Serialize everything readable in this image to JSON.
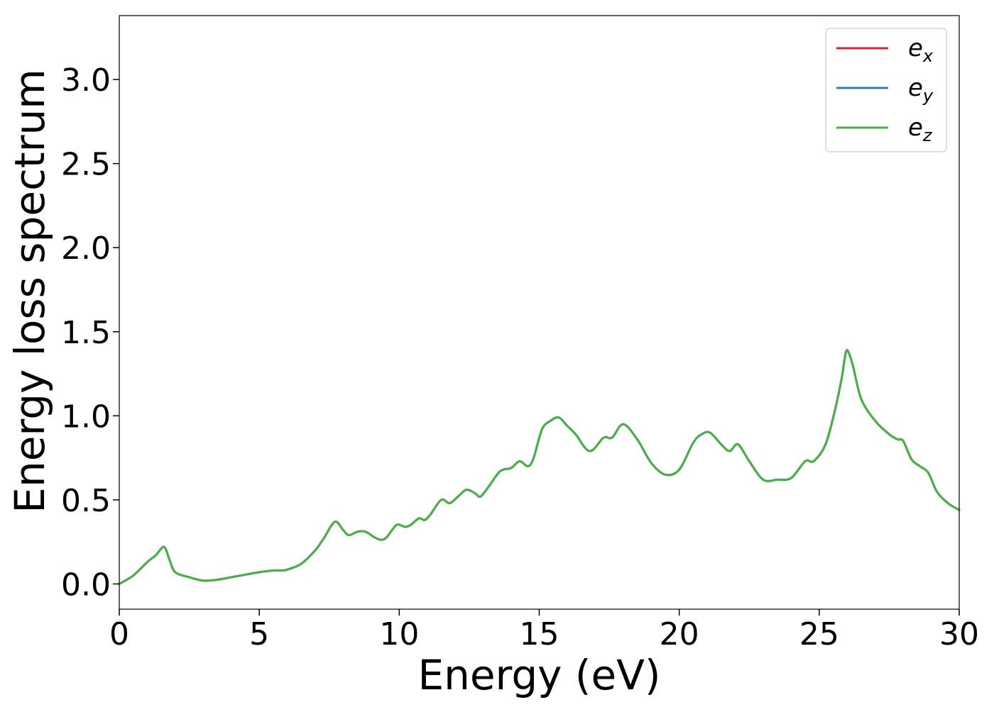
{
  "chart_data": {
    "type": "line",
    "title": "",
    "xlabel": "Energy (eV)",
    "ylabel": "Energy loss spectrum",
    "xlim": [
      0,
      30
    ],
    "ylim": [
      -0.15,
      3.38
    ],
    "xticks": [
      0,
      5,
      10,
      15,
      20,
      25,
      30
    ],
    "xtick_labels": [
      "0",
      "5",
      "10",
      "15",
      "20",
      "25",
      "30"
    ],
    "yticks": [
      0.0,
      0.5,
      1.0,
      1.5,
      2.0,
      2.5,
      3.0
    ],
    "ytick_labels": [
      "0.0",
      "0.5",
      "1.0",
      "1.5",
      "2.0",
      "2.5",
      "3.0"
    ],
    "grid": false,
    "legend_position": "top-right",
    "x": [
      0,
      0.5,
      1.0,
      1.3,
      1.6,
      1.8,
      2.0,
      2.5,
      3.0,
      3.5,
      4.0,
      4.5,
      5.0,
      5.5,
      5.8,
      6.0,
      6.5,
      7.0,
      7.3,
      7.7,
      8.0,
      8.2,
      8.5,
      8.8,
      9.2,
      9.5,
      9.9,
      10.2,
      10.4,
      10.7,
      10.9,
      11.1,
      11.5,
      11.8,
      12.1,
      12.4,
      12.7,
      12.9,
      13.2,
      13.6,
      14.0,
      14.3,
      14.6,
      14.8,
      15.1,
      15.4,
      15.7,
      16.0,
      16.3,
      16.8,
      17.3,
      17.6,
      18.0,
      18.5,
      19.0,
      19.5,
      20.0,
      20.5,
      20.8,
      21.1,
      21.5,
      21.8,
      22.1,
      22.5,
      23.0,
      23.5,
      24.0,
      24.5,
      24.8,
      25.2,
      25.5,
      25.8,
      25.9,
      26.0,
      26.2,
      26.5,
      27.0,
      27.5,
      27.8,
      28.0,
      28.3,
      28.6,
      28.9,
      29.2,
      29.6,
      30.0
    ],
    "series": [
      {
        "name": "e_x",
        "color": "#d62728",
        "values": [
          0.0,
          0.05,
          0.13,
          0.17,
          0.22,
          0.14,
          0.07,
          0.04,
          0.02,
          0.025,
          0.04,
          0.055,
          0.07,
          0.08,
          0.08,
          0.085,
          0.12,
          0.2,
          0.27,
          0.37,
          0.32,
          0.29,
          0.31,
          0.31,
          0.27,
          0.27,
          0.35,
          0.34,
          0.35,
          0.39,
          0.38,
          0.41,
          0.5,
          0.48,
          0.52,
          0.56,
          0.54,
          0.52,
          0.58,
          0.67,
          0.69,
          0.73,
          0.7,
          0.75,
          0.92,
          0.97,
          0.99,
          0.94,
          0.89,
          0.79,
          0.87,
          0.87,
          0.95,
          0.86,
          0.72,
          0.65,
          0.68,
          0.84,
          0.89,
          0.9,
          0.83,
          0.79,
          0.83,
          0.73,
          0.62,
          0.62,
          0.63,
          0.73,
          0.73,
          0.82,
          0.99,
          1.22,
          1.33,
          1.39,
          1.3,
          1.1,
          0.97,
          0.89,
          0.86,
          0.85,
          0.74,
          0.7,
          0.66,
          0.55,
          0.48,
          0.44
        ]
      },
      {
        "name": "e_y",
        "color": "#377eb8",
        "values": [
          0.0,
          0.05,
          0.13,
          0.17,
          0.22,
          0.14,
          0.07,
          0.04,
          0.02,
          0.025,
          0.04,
          0.055,
          0.07,
          0.08,
          0.08,
          0.085,
          0.12,
          0.2,
          0.27,
          0.37,
          0.32,
          0.29,
          0.31,
          0.31,
          0.27,
          0.27,
          0.35,
          0.34,
          0.35,
          0.39,
          0.38,
          0.41,
          0.5,
          0.48,
          0.52,
          0.56,
          0.54,
          0.52,
          0.58,
          0.67,
          0.69,
          0.73,
          0.7,
          0.75,
          0.92,
          0.97,
          0.99,
          0.94,
          0.89,
          0.79,
          0.87,
          0.87,
          0.95,
          0.86,
          0.72,
          0.65,
          0.68,
          0.84,
          0.89,
          0.9,
          0.83,
          0.79,
          0.83,
          0.73,
          0.62,
          0.62,
          0.63,
          0.73,
          0.73,
          0.82,
          0.99,
          1.22,
          1.33,
          1.39,
          1.3,
          1.1,
          0.97,
          0.89,
          0.86,
          0.85,
          0.74,
          0.7,
          0.66,
          0.55,
          0.48,
          0.44
        ]
      },
      {
        "name": "e_z",
        "color": "#4daf4a",
        "values": [
          0.0,
          0.05,
          0.13,
          0.17,
          0.22,
          0.14,
          0.07,
          0.04,
          0.02,
          0.025,
          0.04,
          0.055,
          0.07,
          0.08,
          0.08,
          0.085,
          0.12,
          0.2,
          0.27,
          0.37,
          0.32,
          0.29,
          0.31,
          0.31,
          0.27,
          0.27,
          0.35,
          0.34,
          0.35,
          0.39,
          0.38,
          0.41,
          0.5,
          0.48,
          0.52,
          0.56,
          0.54,
          0.52,
          0.58,
          0.67,
          0.69,
          0.73,
          0.7,
          0.75,
          0.92,
          0.97,
          0.99,
          0.94,
          0.89,
          0.79,
          0.87,
          0.87,
          0.95,
          0.86,
          0.72,
          0.65,
          0.68,
          0.84,
          0.89,
          0.9,
          0.83,
          0.79,
          0.83,
          0.73,
          0.62,
          0.62,
          0.63,
          0.73,
          0.73,
          0.82,
          0.99,
          1.22,
          1.33,
          1.39,
          1.3,
          1.1,
          0.97,
          0.89,
          0.86,
          0.85,
          0.74,
          0.7,
          0.66,
          0.55,
          0.48,
          0.44
        ]
      }
    ],
    "legend": [
      {
        "base": "e",
        "sub": "x",
        "color": "#d62728"
      },
      {
        "base": "e",
        "sub": "y",
        "color": "#377eb8"
      },
      {
        "base": "e",
        "sub": "z",
        "color": "#4daf4a"
      }
    ]
  }
}
